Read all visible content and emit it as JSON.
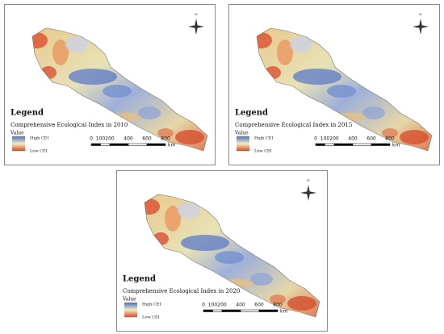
{
  "panels": [
    {
      "legend_title": "Legend",
      "subtitle": "Comprehensive Ecological Index in 2010",
      "value_label": "Value",
      "high_label": "High CEI",
      "low_label": "Low CEI",
      "scale_labels": [
        0,
        100,
        200,
        400,
        600,
        800
      ],
      "scale_unit": "km",
      "north": "N"
    },
    {
      "legend_title": "Legend",
      "subtitle": "Comprehensive Ecological Index in 2015",
      "value_label": "Value",
      "high_label": "High CEI",
      "low_label": "Low CEI",
      "scale_labels": [
        0,
        100,
        200,
        400,
        600,
        800
      ],
      "scale_unit": "km",
      "north": "N"
    },
    {
      "legend_title": "Legend",
      "subtitle": "Comprehensive Ecological Index in 2020",
      "value_label": "Value",
      "high_label": "High CEI",
      "low_label": "Low CEI",
      "scale_labels": [
        0,
        100,
        200,
        400,
        600,
        800
      ],
      "scale_unit": "km",
      "north": "N"
    }
  ]
}
